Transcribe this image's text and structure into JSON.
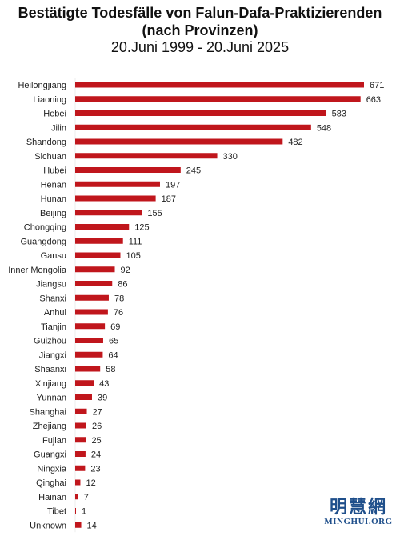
{
  "chart_data": {
    "type": "bar",
    "orientation": "horizontal",
    "title": "Bestätigte Todesfälle von Falun-Dafa-Praktizierenden",
    "subtitle": "(nach Provinzen)",
    "date_range": "20.Juni 1999 - 20.Juni 2025",
    "categories": [
      "Heilongjiang",
      "Liaoning",
      "Hebei",
      "Jilin",
      "Shandong",
      "Sichuan",
      "Hubei",
      "Henan",
      "Hunan",
      "Beijing",
      "Chongqing",
      "Guangdong",
      "Gansu",
      "Inner Mongolia",
      "Jiangsu",
      "Shanxi",
      "Anhui",
      "Tianjin",
      "Guizhou",
      "Jiangxi",
      "Shaanxi",
      "Xinjiang",
      "Yunnan",
      "Shanghai",
      "Zhejiang",
      "Fujian",
      "Guangxi",
      "Ningxia",
      "Qinghai",
      "Hainan",
      "Tibet",
      "Unknown"
    ],
    "values": [
      671,
      663,
      583,
      548,
      482,
      330,
      245,
      197,
      187,
      155,
      125,
      111,
      105,
      92,
      86,
      78,
      76,
      69,
      65,
      64,
      58,
      43,
      39,
      27,
      26,
      25,
      24,
      23,
      12,
      7,
      1,
      14
    ],
    "xlim": [
      0,
      671
    ],
    "bar_color": "#c0161c",
    "grid": false,
    "legend": "none"
  },
  "logo": {
    "cjk": "明慧網",
    "text": "MINGHUI.ORG"
  }
}
